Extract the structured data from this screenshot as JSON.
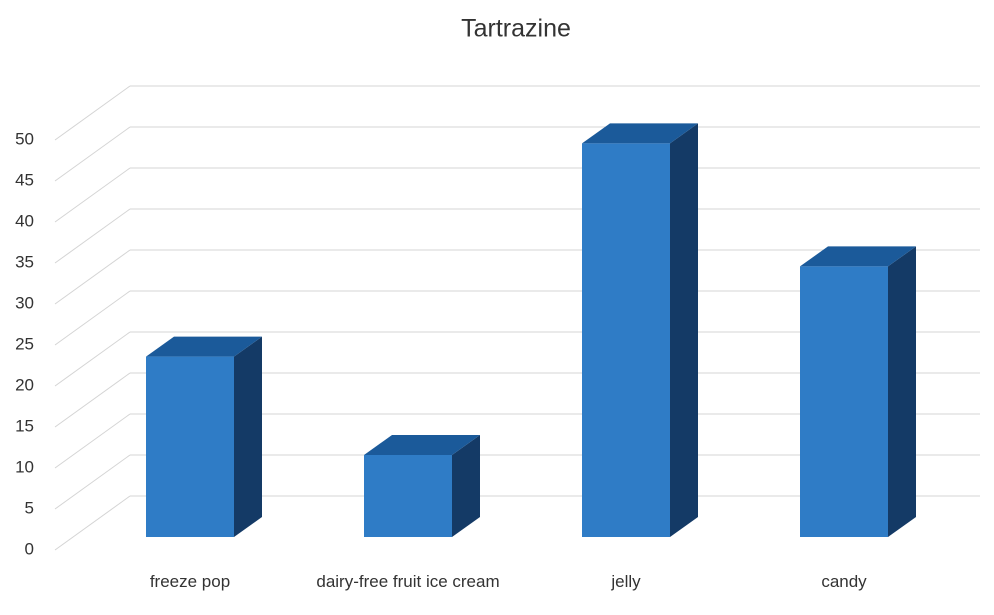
{
  "chart_data": {
    "type": "bar3d",
    "title": "Tartrazine",
    "categories": [
      "freeze pop",
      "dairy-free fruit ice cream",
      "jelly",
      "candy"
    ],
    "values": [
      22,
      10,
      48,
      33
    ],
    "color": "#2f7cc6",
    "ylim": [
      0,
      50
    ],
    "yticks": [
      0,
      5,
      10,
      15,
      20,
      25,
      30,
      35,
      40,
      45,
      50
    ],
    "grid": true
  }
}
